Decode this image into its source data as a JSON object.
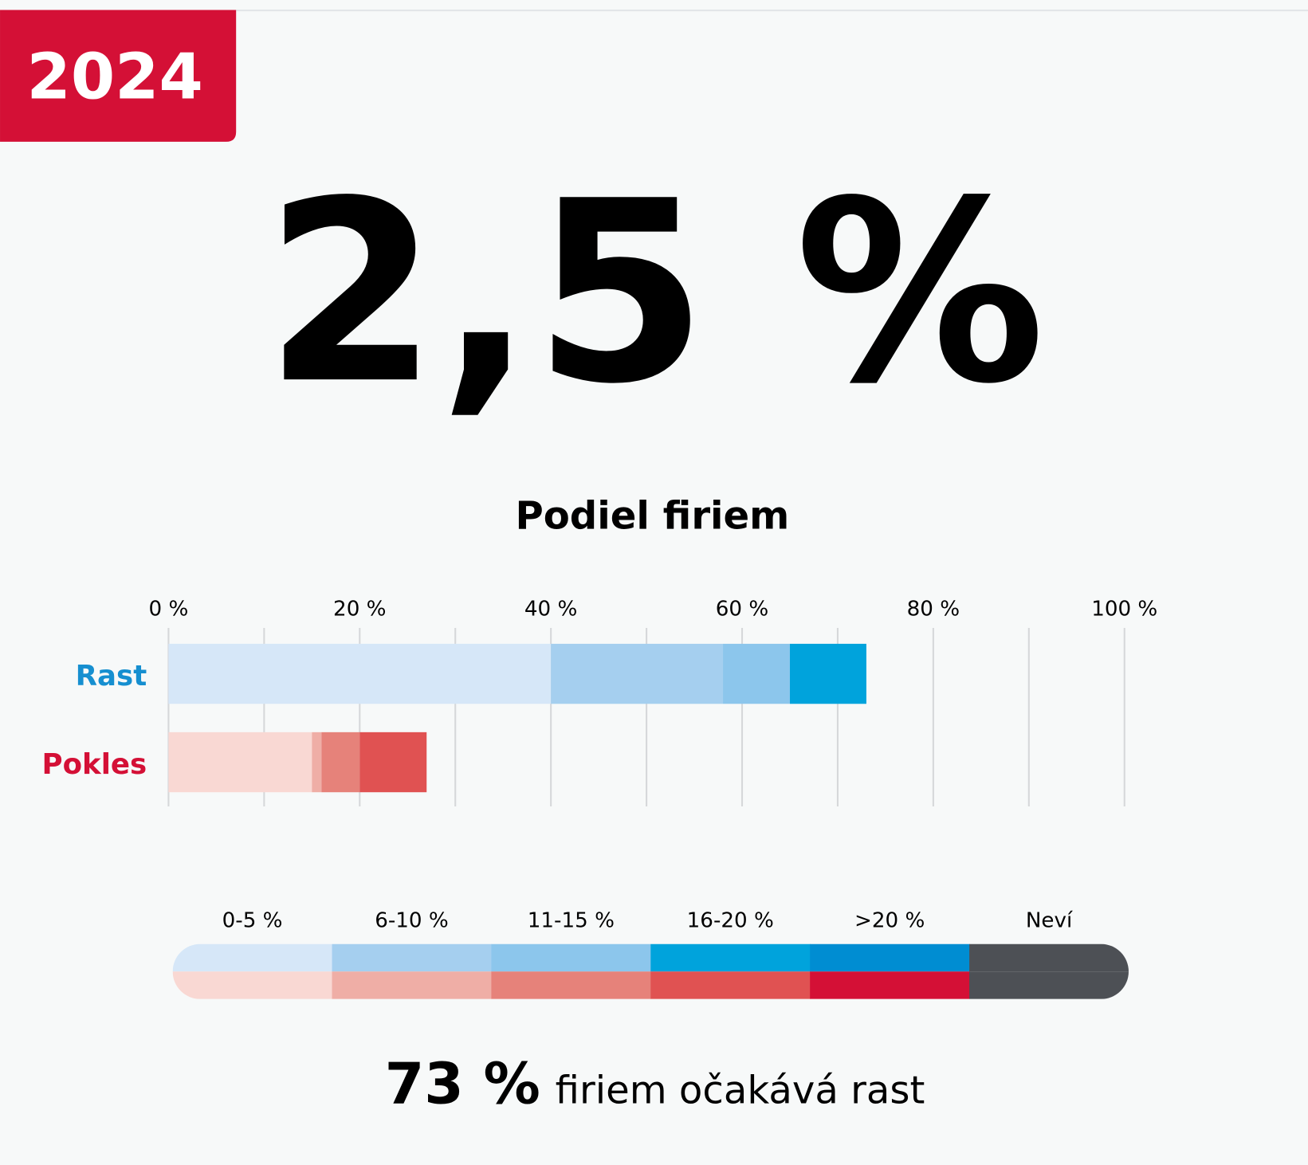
{
  "badge": "2024",
  "headline": "2,5 %",
  "chart_data": {
    "type": "stacked_barh",
    "title": "Podiel firiem",
    "categories": [
      "Rast",
      "Pokles"
    ],
    "category_colors": [
      "#168fd0",
      "#d41036"
    ],
    "series": [
      {
        "name": "0-5 %",
        "colors": [
          "#d6e7f8",
          "#f9d8d3"
        ],
        "values": [
          40,
          15
        ]
      },
      {
        "name": "6-10 %",
        "colors": [
          "#a5cfef",
          "#efaea6"
        ],
        "values": [
          18,
          1
        ]
      },
      {
        "name": "11-15 %",
        "colors": [
          "#8cc6ec",
          "#e6827a"
        ],
        "values": [
          7,
          4
        ]
      },
      {
        "name": "16-20 %",
        "colors": [
          "#00a3dc",
          "#e05252"
        ],
        "values": [
          8,
          7
        ]
      },
      {
        "name": ">20 %",
        "colors": [
          "#008dd2",
          "#d41036"
        ],
        "values": [
          0,
          0
        ]
      },
      {
        "name": "Neví",
        "colors": [
          "#4d5055",
          "#4d5055"
        ],
        "values": [
          0,
          0
        ]
      }
    ],
    "xlim": [
      0,
      100
    ],
    "xticks": [
      {
        "value": 0,
        "label": "0 %"
      },
      {
        "value": 20,
        "label": "20 %"
      },
      {
        "value": 40,
        "label": "40 %"
      },
      {
        "value": 60,
        "label": "60 %"
      },
      {
        "value": 80,
        "label": "80 %"
      },
      {
        "value": 100,
        "label": "100 %"
      }
    ],
    "grid_xticks": [
      0,
      10,
      20,
      30,
      40,
      50,
      60,
      70,
      80,
      90,
      100
    ],
    "grid": true,
    "summary_value": "73 %",
    "summary_text": "firiem očakává rast"
  }
}
